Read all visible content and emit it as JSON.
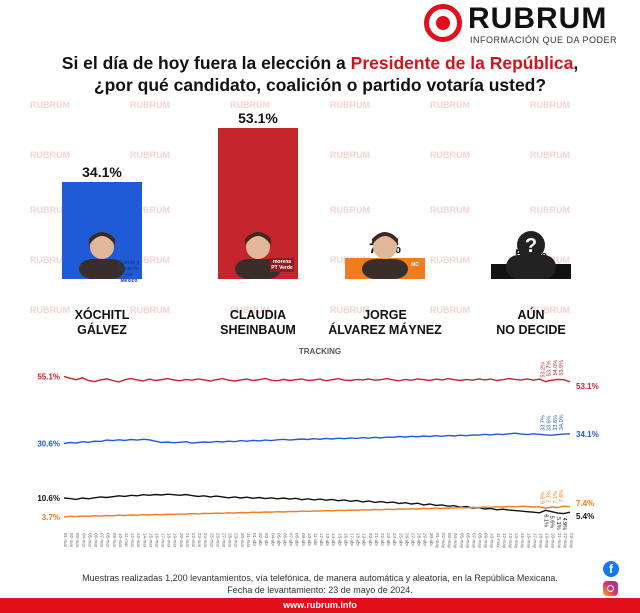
{
  "brand": {
    "name": "RUBRUM",
    "tagline": "INFORMACIÓN QUE DA PODER"
  },
  "title": {
    "line1_before": "Si el día de hoy fuera la elección a ",
    "line1_highlight": "Presidente de la República",
    "line1_after": ",",
    "line2": "¿por qué candidato, coalición o partido votaría usted?"
  },
  "colors": {
    "galvez": "#1f5bd6",
    "sheinbaum": "#c4242b",
    "maynez": "#f07c1b",
    "nodecide": "#111111",
    "accent": "#e20e1c"
  },
  "chart_data": [
    {
      "type": "bar",
      "categories": [
        "XÓCHITL GÁLVEZ",
        "CLAUDIA SHEINBAUM",
        "JORGE ÁLVAREZ MÁYNEZ",
        "AÚN NO DECIDE"
      ],
      "name_lines": [
        [
          "XÓCHITL",
          "GÁLVEZ"
        ],
        [
          "CLAUDIA",
          "SHEINBAUM"
        ],
        [
          "JORGE",
          "ÁLVAREZ MÁYNEZ"
        ],
        [
          "AÚN",
          "NO DECIDE"
        ]
      ],
      "values": [
        34.1,
        53.1,
        7.4,
        5.4
      ],
      "value_labels": [
        "34.1%",
        "53.1%",
        "7.4%",
        "5.4%"
      ],
      "ylim": [
        0,
        53.1
      ],
      "badges": [
        "Fuerza y Corazón por México",
        "morena PT Verde",
        "MC",
        ""
      ]
    },
    {
      "type": "line",
      "title": "TRACKING",
      "x": [
        "01-mar",
        "02-mar",
        "03-mar",
        "04-mar",
        "05-mar",
        "06-mar",
        "07-mar",
        "08-mar",
        "09-mar",
        "10-mar",
        "11-mar",
        "12-mar",
        "13-mar",
        "14-mar",
        "15-mar",
        "16-mar",
        "17-mar",
        "18-mar",
        "19-mar",
        "20-mar",
        "21-mar",
        "22-mar",
        "23-mar",
        "24-mar",
        "25-mar",
        "26-mar",
        "27-mar",
        "28-mar",
        "29-mar",
        "30-mar",
        "31-mar",
        "01-abr",
        "02-abr",
        "03-abr",
        "04-abr",
        "05-abr",
        "06-abr",
        "07-abr",
        "08-abr",
        "09-abr",
        "10-abr",
        "11-abr",
        "12-abr",
        "13-abr",
        "14-abr",
        "15-abr",
        "16-abr",
        "17-abr",
        "18-abr",
        "19-abr",
        "20-abr",
        "21-abr",
        "22-abr",
        "23-abr",
        "24-abr",
        "25-abr",
        "26-abr",
        "27-abr",
        "28-abr",
        "29-abr",
        "30-abr",
        "01-may",
        "02-may",
        "03-may",
        "04-may",
        "05-may",
        "06-may",
        "07-may",
        "08-may",
        "09-may",
        "10-may",
        "11-may",
        "12-may",
        "13-may",
        "14-may",
        "15-may",
        "16-may",
        "17-may",
        "18-may",
        "19-may",
        "20-may",
        "21-may",
        "22-may",
        "23-may"
      ],
      "ylim": [
        0,
        60
      ],
      "series": [
        {
          "name": "CLAUDIA SHEINBAUM",
          "color": "#c4242b",
          "start_label": "55.1%",
          "end_label": "53.1%",
          "recent_labels": [
            "53.2%",
            "53.7%",
            "54.0%",
            "53.9%"
          ],
          "values": [
            55.1,
            54.4,
            53.9,
            54.6,
            53.6,
            53.2,
            53.8,
            54.2,
            53.6,
            53.1,
            53.9,
            54.3,
            53.8,
            53.4,
            54.1,
            53.6,
            53.9,
            54.3,
            53.8,
            53.5,
            54.0,
            53.7,
            54.2,
            53.8,
            53.4,
            53.9,
            54.3,
            53.7,
            53.4,
            53.8,
            54.1,
            53.6,
            53.9,
            54.3,
            53.7,
            53.5,
            54.0,
            53.6,
            53.9,
            54.2,
            53.6,
            53.8,
            54.1,
            53.5,
            53.9,
            54.3,
            53.7,
            53.6,
            54.0,
            53.8,
            54.2,
            53.7,
            53.9,
            54.3,
            53.8,
            53.5,
            54.0,
            53.7,
            54.2,
            53.9,
            53.6,
            54.1,
            53.8,
            54.3,
            53.9,
            53.6,
            54.0,
            53.7,
            54.2,
            53.8,
            54.1,
            53.6,
            53.9,
            54.3,
            54.0,
            53.8,
            54.2,
            53.7,
            54.1,
            53.2,
            53.7,
            54.0,
            53.9,
            53.1
          ]
        },
        {
          "name": "XÓCHITL GÁLVEZ",
          "color": "#1f5bd6",
          "start_label": "30.6%",
          "end_label": "34.1%",
          "recent_labels": [
            "33.7%",
            "33.6%",
            "33.8%",
            "34.0%"
          ],
          "values": [
            30.6,
            30.9,
            30.7,
            31.2,
            31.0,
            31.4,
            31.3,
            31.8,
            31.6,
            31.9,
            31.7,
            32.0,
            31.8,
            32.1,
            31.9,
            31.4,
            30.9,
            31.1,
            30.8,
            31.0,
            31.2,
            30.7,
            30.9,
            31.1,
            31.0,
            31.3,
            31.1,
            31.4,
            31.2,
            31.6,
            31.4,
            31.7,
            31.5,
            31.8,
            31.6,
            31.9,
            32.1,
            31.8,
            32.0,
            32.2,
            32.0,
            32.3,
            32.1,
            32.4,
            32.2,
            32.5,
            32.3,
            32.6,
            32.4,
            32.7,
            32.5,
            32.8,
            32.6,
            32.9,
            32.8,
            33.1,
            32.9,
            33.2,
            33.0,
            33.3,
            33.1,
            33.4,
            33.2,
            33.5,
            33.3,
            33.6,
            33.4,
            33.7,
            33.6,
            33.9,
            33.7,
            34.0,
            33.8,
            34.1,
            34.3,
            34.0,
            33.8,
            34.1,
            33.9,
            33.7,
            33.6,
            33.8,
            34.0,
            34.1
          ]
        },
        {
          "name": "AÚN NO DECIDE",
          "color": "#111111",
          "start_label": "10.6%",
          "end_label": "5.4%",
          "recent_labels": [
            "6.1%",
            "5.6%",
            "5.1%",
            "4.9%"
          ],
          "values": [
            10.6,
            10.4,
            10.1,
            10.6,
            10.3,
            10.7,
            11.0,
            10.8,
            11.1,
            11.4,
            11.2,
            11.6,
            11.4,
            11.8,
            11.6,
            11.9,
            11.7,
            12.0,
            11.8,
            11.6,
            11.9,
            11.5,
            11.2,
            11.4,
            11.0,
            11.3,
            11.0,
            10.7,
            11.0,
            10.6,
            10.9,
            10.5,
            10.8,
            10.4,
            10.7,
            10.3,
            10.6,
            10.2,
            10.5,
            10.0,
            10.3,
            9.9,
            10.2,
            9.8,
            10.1,
            9.6,
            9.9,
            9.4,
            9.7,
            9.2,
            9.5,
            9.0,
            9.3,
            8.9,
            9.1,
            8.6,
            8.9,
            8.4,
            8.7,
            8.1,
            8.4,
            7.9,
            8.1,
            7.6,
            7.8,
            7.2,
            7.5,
            6.9,
            7.1,
            6.6,
            6.8,
            6.3,
            6.5,
            6.2,
            6.0,
            5.8,
            5.6,
            5.4,
            5.2,
            6.1,
            5.6,
            5.1,
            4.9,
            5.4
          ]
        },
        {
          "name": "JORGE ÁLVAREZ MÁYNEZ",
          "color": "#f07c1b",
          "start_label": "3.7%",
          "end_label": "7.4%",
          "recent_labels": [
            "6.9%",
            "7.3%",
            "7.1%",
            "7.6%"
          ],
          "values": [
            3.7,
            3.9,
            3.8,
            4.0,
            3.9,
            4.1,
            4.0,
            4.2,
            4.1,
            4.3,
            4.2,
            4.4,
            4.3,
            4.5,
            4.4,
            4.6,
            4.5,
            4.7,
            4.6,
            4.8,
            4.7,
            4.9,
            4.8,
            5.0,
            4.9,
            5.1,
            5.0,
            5.2,
            5.1,
            5.3,
            5.2,
            5.4,
            5.3,
            5.5,
            5.4,
            5.6,
            5.5,
            5.7,
            5.6,
            5.8,
            5.7,
            5.9,
            5.8,
            6.0,
            5.9,
            6.1,
            6.0,
            6.2,
            6.1,
            6.3,
            6.2,
            6.4,
            6.3,
            6.5,
            6.4,
            6.6,
            6.5,
            6.7,
            6.6,
            6.8,
            6.7,
            6.9,
            6.8,
            7.0,
            6.9,
            7.1,
            7.0,
            7.2,
            7.1,
            7.3,
            7.2,
            7.4,
            7.3,
            7.5,
            7.4,
            7.6,
            7.5,
            7.3,
            7.4,
            6.9,
            7.3,
            7.1,
            7.6,
            7.4
          ]
        }
      ]
    }
  ],
  "footnote": {
    "line1": "Muestras realizadas 1,200 levantamientos, vía telefónica, de manera automática y aleatoria, en la República Mexicana.",
    "line2": "Fecha de levantamiento: 23 de mayo de 2024."
  },
  "footer": {
    "url": "www.rubrum.info"
  },
  "social": {
    "facebook": "f",
    "instagram_icon": "instagram-icon"
  }
}
